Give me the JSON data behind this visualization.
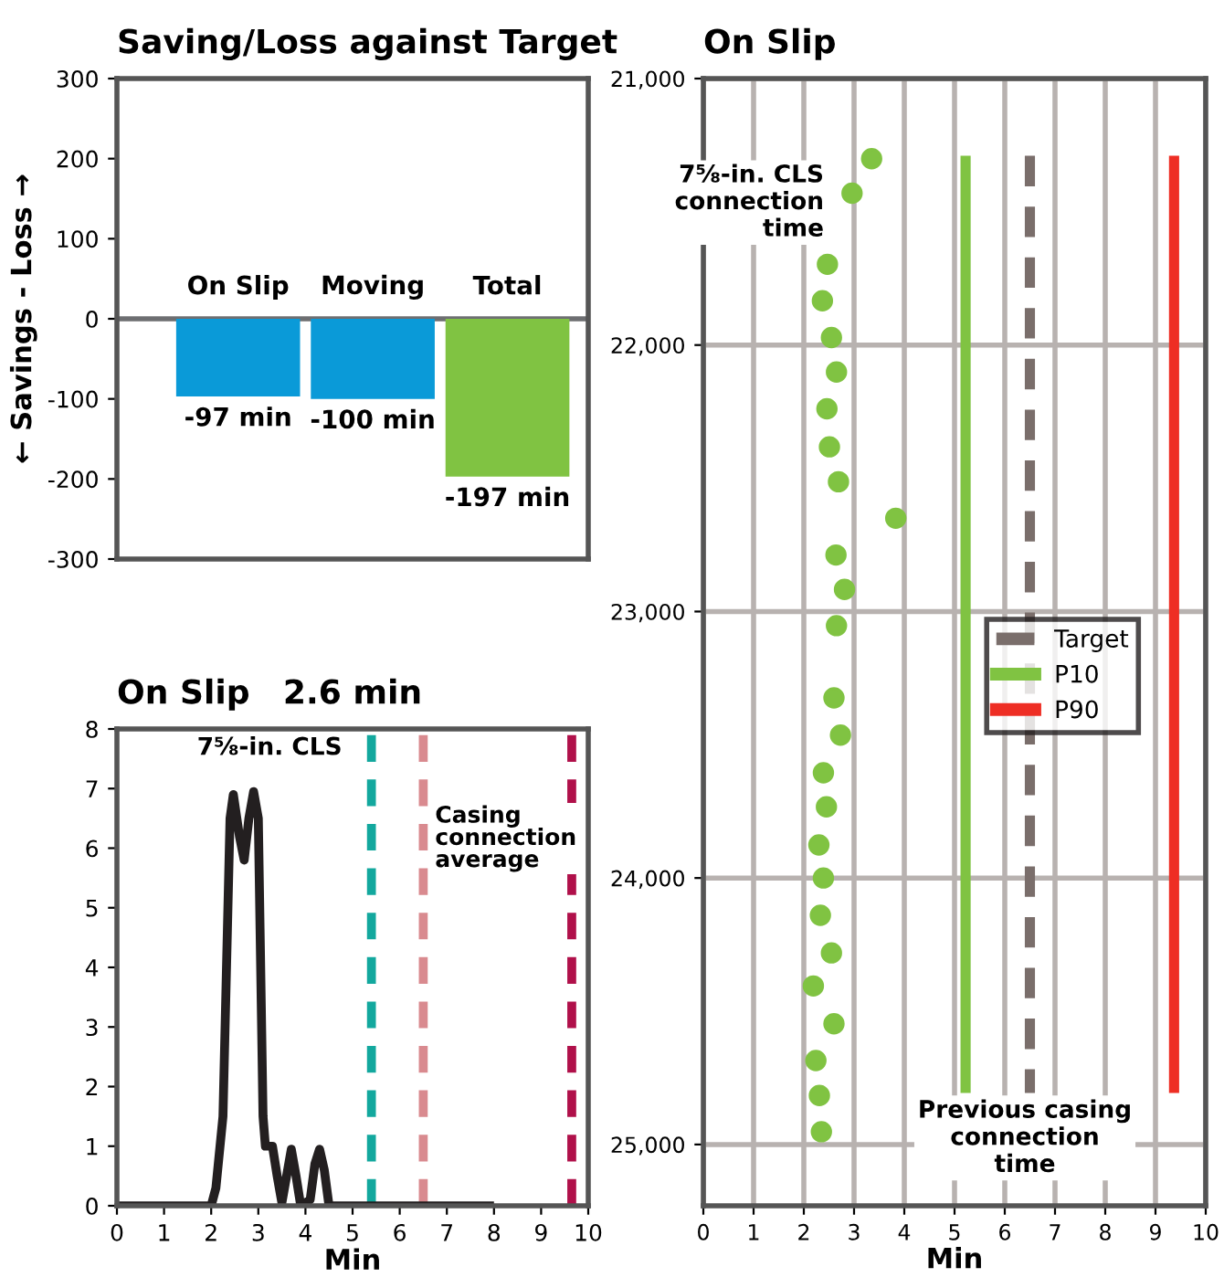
{
  "chart_data": [
    {
      "type": "bar",
      "title": "Saving/Loss against Target",
      "ylabel": "← Savings - Loss →",
      "categories": [
        "On Slip",
        "Moving",
        "Total"
      ],
      "values": [
        -97,
        -100,
        -197
      ],
      "colors": [
        "#0a9ad8",
        "#0a9ad8",
        "#80c342"
      ],
      "value_labels": [
        "-97 min",
        "-100 min",
        "-197 min"
      ],
      "ylim": [
        -300,
        300
      ],
      "yticks": [
        -300,
        -200,
        -100,
        0,
        100,
        200,
        300
      ],
      "ref_lines": [
        {
          "axis": "y",
          "value": 0,
          "color": "#6d6e71"
        }
      ],
      "tick_labels": "y"
    },
    {
      "type": "line",
      "title": "On Slip",
      "subtitle": "2.6 min",
      "xlabel": "Min",
      "color": "#231f20",
      "x": [
        0,
        2,
        2.1,
        2.25,
        2.4,
        2.47,
        2.6,
        2.7,
        2.8,
        2.9,
        3.0,
        3.1,
        3.15,
        3.3,
        3.4,
        3.5,
        3.6,
        3.7,
        3.8,
        3.9,
        4.1,
        4.2,
        4.3,
        4.4,
        4.5,
        8
      ],
      "values": [
        0,
        0,
        0.3,
        1.5,
        6.5,
        6.9,
        6.2,
        5.8,
        6.5,
        6.95,
        6.5,
        1.5,
        1,
        1,
        0.5,
        0.05,
        0.5,
        0.95,
        0.5,
        0,
        0.1,
        0.7,
        0.95,
        0.6,
        0,
        0
      ],
      "xlim": [
        0,
        10
      ],
      "xticks": [
        0,
        1,
        2,
        3,
        4,
        5,
        6,
        7,
        8,
        9,
        10
      ],
      "ylim": [
        0,
        8
      ],
      "yticks": [
        0,
        1,
        2,
        3,
        4,
        5,
        6,
        7,
        8
      ],
      "ref_lines": [
        {
          "axis": "x",
          "value": 5.4,
          "color": "#13a89e",
          "line_style": "dashed"
        },
        {
          "axis": "x",
          "value": 6.5,
          "color": "#d98a8f",
          "line_style": "dashed",
          "label": "Casing connection average"
        },
        {
          "axis": "x",
          "value": 9.65,
          "color": "#b0104a",
          "line_style": "dashed"
        }
      ],
      "annotations": [
        "7⅝-in. CLS"
      ]
    },
    {
      "type": "scatter",
      "title": "On Slip",
      "xlabel": "Min",
      "xlim": [
        0,
        10
      ],
      "xticks": [
        0,
        1,
        2,
        3,
        4,
        5,
        6,
        7,
        8,
        9,
        10
      ],
      "ylim": [
        25230,
        21000
      ],
      "yticks": [
        {
          "value": 21000,
          "label": "21,000"
        },
        {
          "value": 22000,
          "label": "22,000"
        },
        {
          "value": 23000,
          "label": "23,000"
        },
        {
          "value": 24000,
          "label": "24,000"
        },
        {
          "value": 25000,
          "label": "25,000"
        }
      ],
      "grid": true,
      "legend": "right",
      "annotations": [
        "7⅝-in. CLS connection time",
        "Previous casing connection time"
      ],
      "series": [
        {
          "type": "scatter",
          "marker": "circle",
          "color": "#80c342",
          "x": [
            3.35,
            2.96,
            2.47,
            2.37,
            2.55,
            2.65,
            2.46,
            2.51,
            2.69,
            3.83,
            2.64,
            2.81,
            2.65,
            2.6,
            2.73,
            2.39,
            2.45,
            2.3,
            2.39,
            2.33,
            2.55,
            2.19,
            2.6,
            2.24,
            2.31,
            2.35
          ],
          "values": [
            21301,
            21430,
            21697,
            21834,
            21972,
            22101,
            22239,
            22382,
            22513,
            22650,
            22788,
            22917,
            23053,
            23324,
            23464,
            23605,
            23733,
            23876,
            24000,
            24140,
            24281,
            24405,
            24547,
            24685,
            24816,
            24952
          ]
        },
        {
          "type": "line",
          "name": "Target",
          "color": "#7a6e6b",
          "line_style": "dashed",
          "x": [
            6.5,
            6.5
          ],
          "values": [
            21290,
            24807
          ]
        },
        {
          "type": "line",
          "name": "P10",
          "color": "#80c342",
          "line_style": "solid",
          "x": [
            5.22,
            5.22
          ],
          "values": [
            21290,
            24807
          ]
        },
        {
          "type": "line",
          "name": "P90",
          "color": "#ee2e24",
          "line_style": "solid",
          "x": [
            9.37,
            9.37
          ],
          "values": [
            21290,
            24807
          ]
        }
      ]
    }
  ]
}
